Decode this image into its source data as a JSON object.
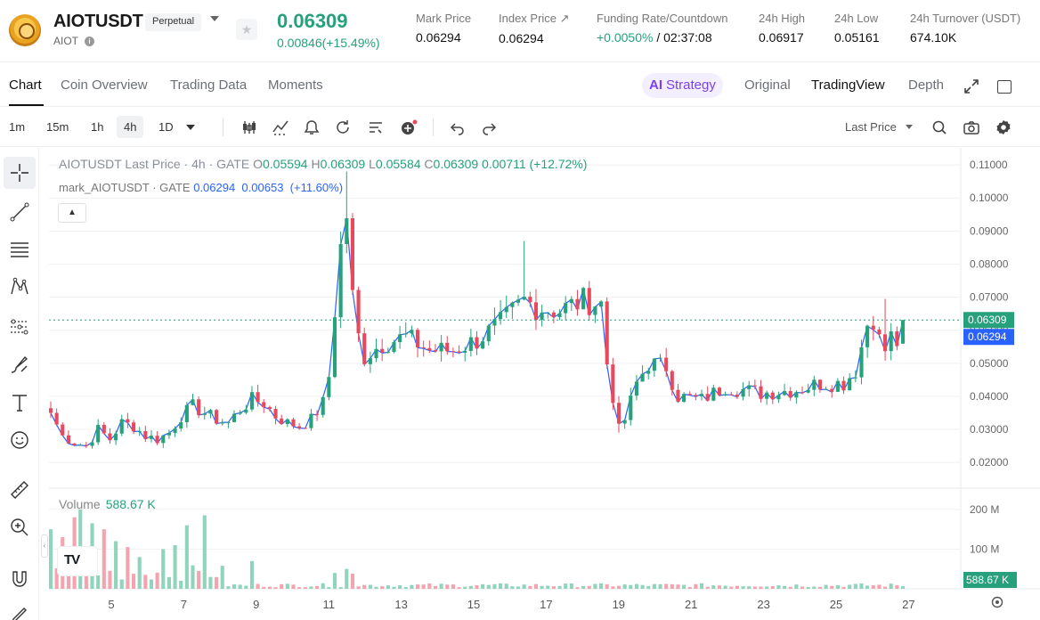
{
  "header": {
    "symbol": "AIOTUSDT",
    "contract_type": "Perpetual",
    "base_asset": "AIOT",
    "last_price": "0.06309",
    "change": "0.00846(+15.49%)",
    "stats": [
      {
        "label": "Mark Price",
        "value": "0.06294"
      },
      {
        "label": "Index Price ↗",
        "value": "0.06294"
      },
      {
        "label": "Funding Rate/Countdown",
        "value_pos": "+0.0050%",
        "value_rest": " / 02:37:08"
      },
      {
        "label": "24h High",
        "value": "0.06917"
      },
      {
        "label": "24h Low",
        "value": "0.05161"
      },
      {
        "label": "24h Turnover (USDT)",
        "value": "674.10K"
      }
    ]
  },
  "tabs": {
    "left": [
      "Chart",
      "Coin Overview",
      "Trading Data",
      "Moments"
    ],
    "ai_mark": "AI",
    "ai_label": "Strategy",
    "right": [
      "Original",
      "TradingView",
      "Depth"
    ],
    "active": "Chart",
    "active_view": "TradingView"
  },
  "toolbar": {
    "timeframes": [
      "1m",
      "15m",
      "1h",
      "4h",
      "1D"
    ],
    "active_timeframe": "4h",
    "price_type": "Last Price",
    "icons": [
      "candles-icon",
      "indicators-icon",
      "alert-icon",
      "replay-icon",
      "templates-icon",
      "add-indicator-icon",
      "undo-icon",
      "redo-icon",
      "search-icon",
      "camera-icon",
      "settings-icon"
    ]
  },
  "legend": {
    "symbol_line": "AIOTUSDT Last Price · 4h · GATE",
    "o_label": "O",
    "o": "0.05594",
    "h_label": "H",
    "h": "0.06309",
    "l_label": "L",
    "l": "0.05584",
    "c_label": "C",
    "c": "0.06309",
    "chg": "0.00711 (+12.72%)",
    "mark_line": "mark_AIOTUSDT · GATE",
    "mark_values": "0.06294  0.00653  (+11.60%)",
    "volume_label": "Volume",
    "volume_value": "588.67 K"
  },
  "colors": {
    "up": "#26a17b",
    "down": "#e8495d",
    "mark_line": "#2962ff",
    "grid": "#f0f1f3",
    "price_tag_last": "#26a17b",
    "price_tag_mark": "#2962ff"
  },
  "chart_data": {
    "type": "candlestick",
    "interval": "4h",
    "ylim": [
      0.016,
      0.113
    ],
    "y_ticks": [
      "0.11000",
      "0.10000",
      "0.09000",
      "0.08000",
      "0.07000",
      "0.06000",
      "0.05000",
      "0.04000",
      "0.03000",
      "0.02000"
    ],
    "x_ticks": [
      "5",
      "7",
      "9",
      "11",
      "13",
      "15",
      "17",
      "19",
      "21",
      "23",
      "25",
      "27"
    ],
    "last_price_tag": "0.06309",
    "mark_price_tag": "0.06294",
    "volume_ticks": [
      "200 M",
      "100 M"
    ],
    "volume_tag": "588.67 K",
    "volume_ylim": [
      0,
      240
    ],
    "anchors": [
      [
        0,
        0.035
      ],
      [
        2,
        0.028
      ],
      [
        4,
        0.026
      ],
      [
        6,
        0.025
      ],
      [
        8,
        0.03
      ],
      [
        10,
        0.027
      ],
      [
        12,
        0.032
      ],
      [
        14,
        0.031
      ],
      [
        16,
        0.028
      ],
      [
        18,
        0.027
      ],
      [
        20,
        0.029
      ],
      [
        22,
        0.034
      ],
      [
        24,
        0.037
      ],
      [
        26,
        0.035
      ],
      [
        28,
        0.033
      ],
      [
        30,
        0.032
      ],
      [
        32,
        0.036
      ],
      [
        34,
        0.039
      ],
      [
        36,
        0.038
      ],
      [
        38,
        0.034
      ],
      [
        40,
        0.032
      ],
      [
        42,
        0.031
      ],
      [
        44,
        0.033
      ],
      [
        46,
        0.038
      ],
      [
        47,
        0.046
      ],
      [
        48,
        0.066
      ],
      [
        49,
        0.085
      ],
      [
        50,
        0.095
      ],
      [
        51,
        0.07
      ],
      [
        52,
        0.058
      ],
      [
        53,
        0.052
      ],
      [
        56,
        0.056
      ],
      [
        60,
        0.058
      ],
      [
        64,
        0.054
      ],
      [
        68,
        0.054
      ],
      [
        72,
        0.057
      ],
      [
        76,
        0.062
      ],
      [
        80,
        0.069
      ],
      [
        82,
        0.067
      ],
      [
        86,
        0.066
      ],
      [
        90,
        0.069
      ],
      [
        93,
        0.068
      ],
      [
        94,
        0.05
      ],
      [
        95,
        0.04
      ],
      [
        96,
        0.03
      ],
      [
        97,
        0.033
      ],
      [
        99,
        0.044
      ],
      [
        101,
        0.05
      ],
      [
        104,
        0.049
      ],
      [
        106,
        0.04
      ],
      [
        110,
        0.039
      ],
      [
        114,
        0.043
      ],
      [
        120,
        0.041
      ],
      [
        126,
        0.042
      ],
      [
        130,
        0.044
      ],
      [
        134,
        0.044
      ],
      [
        136,
        0.048
      ],
      [
        137,
        0.055
      ],
      [
        138,
        0.062
      ],
      [
        139,
        0.064
      ],
      [
        140,
        0.057
      ],
      [
        141,
        0.054
      ],
      [
        142,
        0.058
      ],
      [
        143,
        0.0563
      ],
      [
        144,
        0.06309
      ]
    ],
    "volume_spikes": [
      [
        0,
        150
      ],
      [
        2,
        130
      ],
      [
        4,
        180
      ],
      [
        5,
        200
      ],
      [
        7,
        165
      ],
      [
        9,
        150
      ],
      [
        11,
        120
      ],
      [
        13,
        105
      ],
      [
        15,
        80
      ],
      [
        19,
        100
      ],
      [
        21,
        110
      ],
      [
        23,
        160
      ],
      [
        26,
        185
      ],
      [
        34,
        70
      ],
      [
        48,
        40
      ],
      [
        50,
        50
      ],
      [
        51,
        38
      ]
    ],
    "last_candle": {
      "o": 0.05594,
      "h": 0.06309,
      "l": 0.05584,
      "c": 0.06309
    }
  }
}
